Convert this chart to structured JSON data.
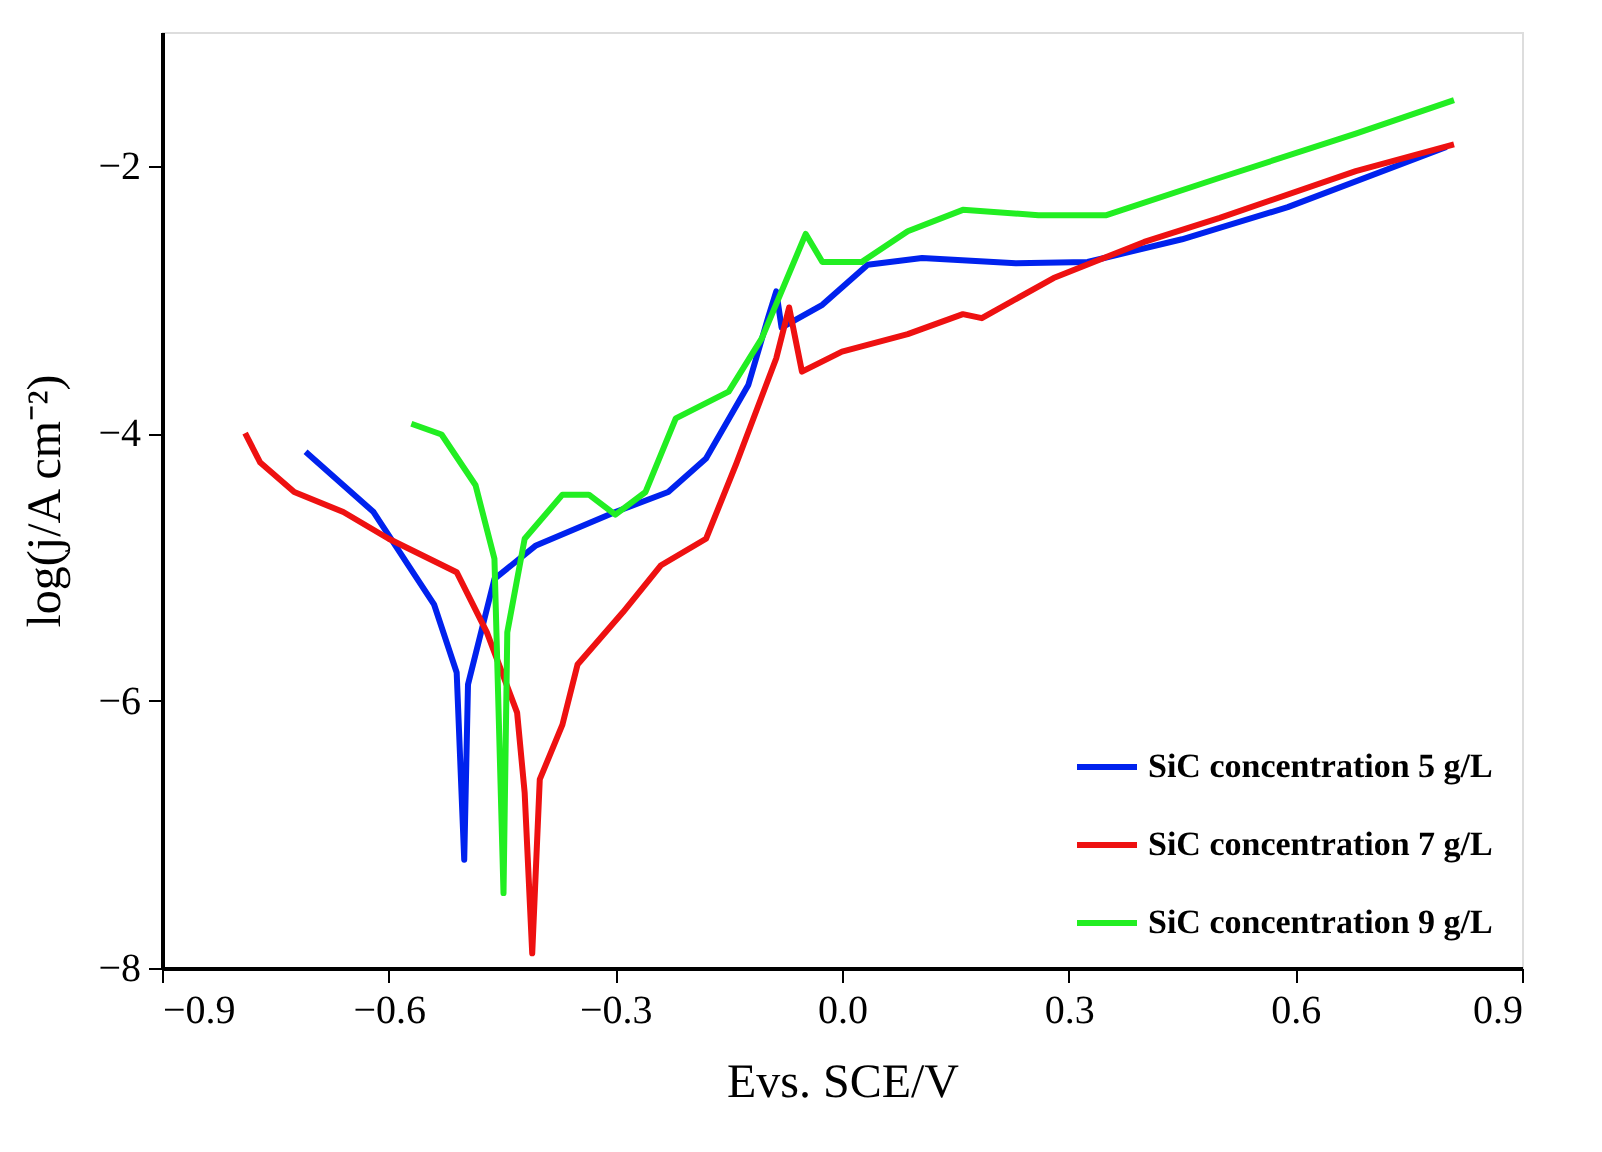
{
  "chart_data": {
    "type": "line",
    "xlabel": "Evs. SCE/V",
    "ylabel": "log(j/A cm⁻²)",
    "xlim": [
      -0.9,
      0.9
    ],
    "xticks": [
      -0.9,
      -0.6,
      -0.3,
      {
        "value": 0,
        "label": "0.0"
      },
      0.3,
      0.6,
      0.9
    ],
    "ylim": [
      -8,
      -1
    ],
    "yticks": [
      -8,
      -6,
      -4,
      -2
    ],
    "grid": false,
    "legend": "bottom right",
    "series": [
      {
        "name": "SiC concentration 5 g/L",
        "color": "#0022ee",
        "x": [
          -0.71,
          -0.66,
          -0.62,
          -0.575,
          -0.54,
          -0.51,
          -0.5,
          -0.495,
          -0.46,
          -0.405,
          -0.3,
          -0.23,
          -0.18,
          -0.124,
          -0.098,
          -0.087,
          -0.08,
          -0.026,
          0.034,
          0.106,
          0.23,
          0.325,
          0.45,
          0.59,
          0.8
        ],
        "values": [
          -4.14,
          -4.39,
          -4.59,
          -4.98,
          -5.28,
          -5.79,
          -7.19,
          -5.88,
          -5.09,
          -4.84,
          -4.59,
          -4.44,
          -4.19,
          -3.64,
          -3.14,
          -2.94,
          -3.21,
          -3.04,
          -2.74,
          -2.69,
          -2.73,
          -2.72,
          -2.55,
          -2.31,
          -1.86
        ]
      },
      {
        "name": "SiC concentration 7 g/L",
        "color": "#ee1111",
        "x": [
          -0.79,
          -0.77,
          -0.725,
          -0.66,
          -0.6,
          -0.51,
          -0.47,
          -0.43,
          -0.42,
          -0.41,
          -0.4,
          -0.37,
          -0.35,
          -0.29,
          -0.24,
          -0.18,
          -0.14,
          -0.087,
          -0.07,
          -0.053,
          0.0,
          0.087,
          0.16,
          0.185,
          0.28,
          0.4,
          0.5,
          0.68,
          0.81
        ],
        "values": [
          -4.0,
          -4.22,
          -4.44,
          -4.59,
          -4.79,
          -5.04,
          -5.49,
          -6.09,
          -6.69,
          -7.89,
          -6.59,
          -6.18,
          -5.73,
          -5.34,
          -4.99,
          -4.79,
          -4.23,
          -3.44,
          -3.06,
          -3.54,
          -3.39,
          -3.26,
          -3.11,
          -3.14,
          -2.84,
          -2.57,
          -2.39,
          -2.04,
          -1.84
        ]
      },
      {
        "name": "SiC concentration 9 g/L",
        "color": "#22ee22",
        "x": [
          -0.57,
          -0.53,
          -0.485,
          -0.46,
          -0.448,
          -0.443,
          -0.42,
          -0.37,
          -0.335,
          -0.3,
          -0.26,
          -0.22,
          -0.15,
          -0.106,
          -0.08,
          -0.048,
          -0.026,
          0.026,
          0.087,
          0.16,
          0.26,
          0.35,
          0.5,
          0.68,
          0.81
        ],
        "values": [
          -3.93,
          -4.01,
          -4.39,
          -4.94,
          -7.44,
          -5.49,
          -4.79,
          -4.46,
          -4.46,
          -4.61,
          -4.44,
          -3.89,
          -3.69,
          -3.29,
          -2.94,
          -2.51,
          -2.72,
          -2.72,
          -2.49,
          -2.33,
          -2.37,
          -2.37,
          -2.09,
          -1.76,
          -1.51
        ]
      }
    ]
  }
}
